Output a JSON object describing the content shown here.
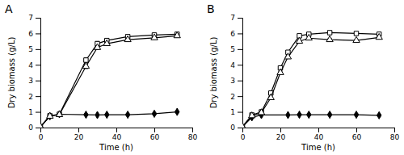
{
  "chart_data": [
    {
      "type": "line",
      "title": "A",
      "xlabel": "Time (h)",
      "ylabel": "Dry biomass (g/L)",
      "xlim": [
        0,
        80
      ],
      "ylim": [
        0,
        7
      ],
      "xticks": [
        0,
        20,
        40,
        60,
        80
      ],
      "yticks": [
        0,
        1,
        2,
        3,
        4,
        5,
        6,
        7
      ],
      "series": [
        {
          "color": "#000000",
          "marker": "diamond",
          "x": [
            0,
            5,
            10,
            24,
            30,
            35,
            46,
            60,
            72
          ],
          "values": [
            0.05,
            0.72,
            0.85,
            0.82,
            0.8,
            0.82,
            0.82,
            0.88,
            1.0
          ],
          "errors": [
            0.02,
            0.04,
            0.05,
            0.05,
            0.05,
            0.05,
            0.05,
            0.05,
            0.06
          ]
        },
        {
          "color": "#000000",
          "marker": "square-open",
          "x": [
            0,
            5,
            10,
            24,
            30,
            35,
            46,
            60,
            72
          ],
          "values": [
            0.05,
            0.75,
            0.85,
            4.3,
            5.35,
            5.55,
            5.8,
            5.9,
            5.95
          ],
          "errors": [
            0.02,
            0.04,
            0.05,
            0.15,
            0.14,
            0.1,
            0.1,
            0.07,
            0.07
          ]
        },
        {
          "color": "#000000",
          "marker": "triangle-open",
          "x": [
            0,
            5,
            10,
            24,
            30,
            35,
            46,
            60,
            72
          ],
          "values": [
            0.05,
            0.72,
            0.82,
            3.9,
            5.1,
            5.35,
            5.6,
            5.72,
            5.85
          ],
          "errors": [
            0.02,
            0.04,
            0.05,
            0.14,
            0.12,
            0.1,
            0.1,
            0.07,
            0.07
          ]
        }
      ]
    },
    {
      "type": "line",
      "title": "B",
      "xlabel": "Time (h)",
      "ylabel": "Dry biomass (g/L)",
      "xlim": [
        0,
        80
      ],
      "ylim": [
        0,
        7
      ],
      "xticks": [
        0,
        20,
        40,
        60,
        80
      ],
      "yticks": [
        0,
        1,
        2,
        3,
        4,
        5,
        6,
        7
      ],
      "series": [
        {
          "color": "#000000",
          "marker": "diamond",
          "x": [
            0,
            5,
            10,
            24,
            30,
            35,
            46,
            60,
            72
          ],
          "values": [
            0.05,
            0.65,
            0.8,
            0.8,
            0.82,
            0.82,
            0.82,
            0.82,
            0.78
          ],
          "errors": [
            0.02,
            0.04,
            0.05,
            0.05,
            0.05,
            0.06,
            0.05,
            0.05,
            0.05
          ]
        },
        {
          "color": "#000000",
          "marker": "square-open",
          "x": [
            0,
            5,
            10,
            15,
            20,
            24,
            30,
            35,
            46,
            60,
            72
          ],
          "values": [
            0.05,
            0.8,
            1.0,
            2.2,
            3.8,
            4.8,
            5.85,
            5.95,
            6.05,
            6.0,
            5.95
          ],
          "errors": [
            0.02,
            0.04,
            0.07,
            0.1,
            0.1,
            0.1,
            0.08,
            0.07,
            0.07,
            0.06,
            0.06
          ]
        },
        {
          "color": "#000000",
          "marker": "triangle-open",
          "x": [
            0,
            5,
            10,
            15,
            20,
            24,
            30,
            35,
            46,
            60,
            72
          ],
          "values": [
            0.05,
            0.75,
            0.95,
            1.9,
            3.5,
            4.5,
            5.5,
            5.7,
            5.6,
            5.55,
            5.75
          ],
          "errors": [
            0.02,
            0.04,
            0.06,
            0.1,
            0.1,
            0.1,
            0.09,
            0.08,
            0.09,
            0.07,
            0.07
          ]
        }
      ]
    }
  ]
}
